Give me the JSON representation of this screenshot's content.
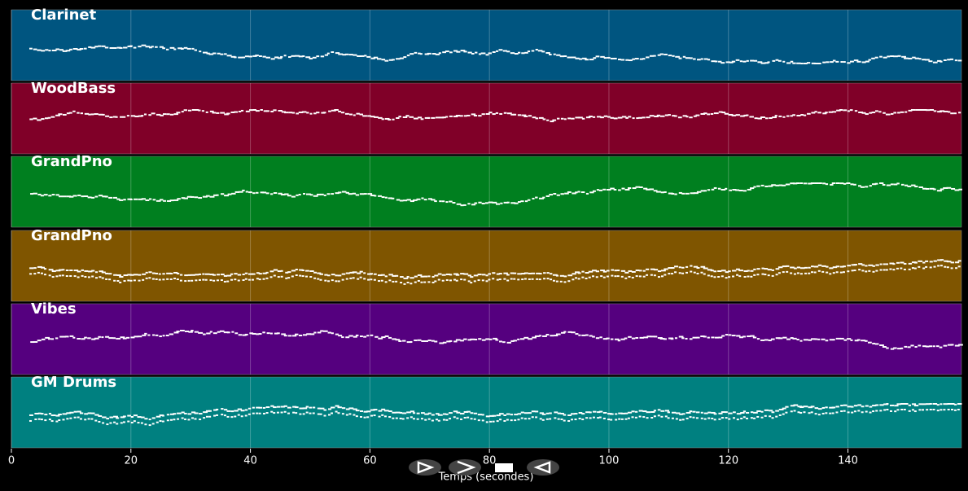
{
  "chart_data": {
    "type": "pianoroll",
    "tracks": [
      {
        "name": "Clarinet",
        "color": "#005580"
      },
      {
        "name": "WoodBass",
        "color": "#800028"
      },
      {
        "name": "GrandPno",
        "color": "#007f1f"
      },
      {
        "name": "GrandPno",
        "color": "#7f5500"
      },
      {
        "name": "Vibes",
        "color": "#55007f"
      },
      {
        "name": "GM Drums",
        "color": "#008080"
      }
    ],
    "xlim": [
      0,
      159
    ],
    "xticks": [
      0,
      20,
      40,
      60,
      80,
      100,
      120,
      140
    ],
    "xlabel": "Temps (secondes)",
    "grid": true
  }
}
